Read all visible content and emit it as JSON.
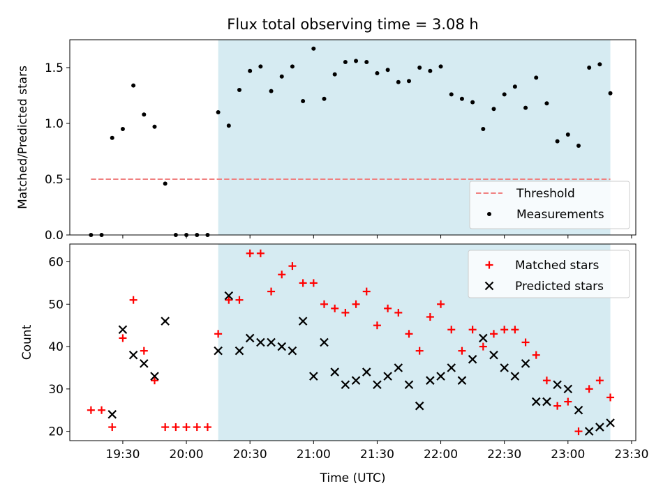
{
  "chart_data": [
    {
      "type": "scatter",
      "title": "Flux total observing time = 3.08 h",
      "xlabel": "",
      "ylabel": "Matched/Predicted stars",
      "x_unit": "time_utc",
      "xlim": [
        "19:05",
        "23:32"
      ],
      "ylim": [
        0,
        1.75
      ],
      "yticks": [
        0.0,
        0.5,
        1.0,
        1.5
      ],
      "ytick_labels": [
        "0.0",
        "0.5",
        "1.0",
        "1.5"
      ],
      "shaded_span": {
        "start": "20:15",
        "end": "23:20",
        "color": "#add8e6"
      },
      "threshold": {
        "name": "Threshold",
        "value": 0.5,
        "x_start": "19:15",
        "x_end": "23:20",
        "color": "#f08080",
        "style": "dashed"
      },
      "legend": {
        "position": "lower-right",
        "entries": [
          "Threshold",
          "Measurements"
        ]
      },
      "series": [
        {
          "name": "Measurements",
          "marker": "dot",
          "color": "#000000",
          "points": [
            [
              "19:15",
              0.0
            ],
            [
              "19:20",
              0.0
            ],
            [
              "19:25",
              0.87
            ],
            [
              "19:30",
              0.95
            ],
            [
              "19:35",
              1.34
            ],
            [
              "19:40",
              1.08
            ],
            [
              "19:45",
              0.97
            ],
            [
              "19:50",
              0.46
            ],
            [
              "19:55",
              0.0
            ],
            [
              "20:00",
              0.0
            ],
            [
              "20:05",
              0.0
            ],
            [
              "20:10",
              0.0
            ],
            [
              "20:15",
              1.1
            ],
            [
              "20:20",
              0.98
            ],
            [
              "20:25",
              1.3
            ],
            [
              "20:30",
              1.47
            ],
            [
              "20:35",
              1.51
            ],
            [
              "20:40",
              1.29
            ],
            [
              "20:45",
              1.42
            ],
            [
              "20:50",
              1.51
            ],
            [
              "20:55",
              1.2
            ],
            [
              "21:00",
              1.67
            ],
            [
              "21:05",
              1.22
            ],
            [
              "21:10",
              1.44
            ],
            [
              "21:15",
              1.55
            ],
            [
              "21:20",
              1.56
            ],
            [
              "21:25",
              1.55
            ],
            [
              "21:30",
              1.45
            ],
            [
              "21:35",
              1.48
            ],
            [
              "21:40",
              1.37
            ],
            [
              "21:45",
              1.38
            ],
            [
              "21:50",
              1.5
            ],
            [
              "21:55",
              1.47
            ],
            [
              "22:00",
              1.51
            ],
            [
              "22:05",
              1.26
            ],
            [
              "22:10",
              1.22
            ],
            [
              "22:15",
              1.19
            ],
            [
              "22:20",
              0.95
            ],
            [
              "22:25",
              1.13
            ],
            [
              "22:30",
              1.26
            ],
            [
              "22:35",
              1.33
            ],
            [
              "22:40",
              1.14
            ],
            [
              "22:45",
              1.41
            ],
            [
              "22:50",
              1.18
            ],
            [
              "22:55",
              0.84
            ],
            [
              "23:00",
              0.9
            ],
            [
              "23:05",
              0.8
            ],
            [
              "23:10",
              1.5
            ],
            [
              "23:15",
              1.53
            ],
            [
              "23:20",
              1.27
            ]
          ]
        }
      ]
    },
    {
      "type": "scatter",
      "title": "",
      "xlabel": "Time (UTC)",
      "ylabel": "Count",
      "x_unit": "time_utc",
      "xlim": [
        "19:05",
        "23:32"
      ],
      "xticks": [
        "19:30",
        "20:00",
        "20:30",
        "21:00",
        "21:30",
        "22:00",
        "22:30",
        "23:00",
        "23:30"
      ],
      "ylim": [
        17.8,
        64.2
      ],
      "yticks": [
        20,
        30,
        40,
        50,
        60
      ],
      "ytick_labels": [
        "20",
        "30",
        "40",
        "50",
        "60"
      ],
      "shaded_span": {
        "start": "20:15",
        "end": "23:20",
        "color": "#add8e6"
      },
      "legend": {
        "position": "upper-right",
        "entries": [
          "Matched stars",
          "Predicted stars"
        ]
      },
      "series": [
        {
          "name": "Matched stars",
          "marker": "plus",
          "color": "#ff0000",
          "points": [
            [
              "19:15",
              25
            ],
            [
              "19:20",
              25
            ],
            [
              "19:25",
              21
            ],
            [
              "19:30",
              42
            ],
            [
              "19:35",
              51
            ],
            [
              "19:40",
              39
            ],
            [
              "19:45",
              32
            ],
            [
              "19:50",
              21
            ],
            [
              "19:55",
              21
            ],
            [
              "20:00",
              21
            ],
            [
              "20:05",
              21
            ],
            [
              "20:10",
              21
            ],
            [
              "20:15",
              43
            ],
            [
              "20:20",
              51
            ],
            [
              "20:25",
              51
            ],
            [
              "20:30",
              62
            ],
            [
              "20:35",
              62
            ],
            [
              "20:40",
              53
            ],
            [
              "20:45",
              57
            ],
            [
              "20:50",
              59
            ],
            [
              "20:55",
              55
            ],
            [
              "21:00",
              55
            ],
            [
              "21:05",
              50
            ],
            [
              "21:10",
              49
            ],
            [
              "21:15",
              48
            ],
            [
              "21:20",
              50
            ],
            [
              "21:25",
              53
            ],
            [
              "21:30",
              45
            ],
            [
              "21:35",
              49
            ],
            [
              "21:40",
              48
            ],
            [
              "21:45",
              43
            ],
            [
              "21:50",
              39
            ],
            [
              "21:55",
              47
            ],
            [
              "22:00",
              50
            ],
            [
              "22:05",
              44
            ],
            [
              "22:10",
              39
            ],
            [
              "22:15",
              44
            ],
            [
              "22:20",
              40
            ],
            [
              "22:25",
              43
            ],
            [
              "22:30",
              44
            ],
            [
              "22:35",
              44
            ],
            [
              "22:40",
              41
            ],
            [
              "22:45",
              38
            ],
            [
              "22:50",
              32
            ],
            [
              "22:55",
              26
            ],
            [
              "23:00",
              27
            ],
            [
              "23:05",
              20
            ],
            [
              "23:10",
              30
            ],
            [
              "23:15",
              32
            ],
            [
              "23:20",
              28
            ]
          ]
        },
        {
          "name": "Predicted stars",
          "marker": "x",
          "color": "#000000",
          "points": [
            [
              "19:25",
              24
            ],
            [
              "19:30",
              44
            ],
            [
              "19:35",
              38
            ],
            [
              "19:40",
              36
            ],
            [
              "19:45",
              33
            ],
            [
              "19:50",
              46
            ],
            [
              "20:15",
              39
            ],
            [
              "20:20",
              52
            ],
            [
              "20:25",
              39
            ],
            [
              "20:30",
              42
            ],
            [
              "20:35",
              41
            ],
            [
              "20:40",
              41
            ],
            [
              "20:45",
              40
            ],
            [
              "20:50",
              39
            ],
            [
              "20:55",
              46
            ],
            [
              "21:00",
              33
            ],
            [
              "21:05",
              41
            ],
            [
              "21:10",
              34
            ],
            [
              "21:15",
              31
            ],
            [
              "21:20",
              32
            ],
            [
              "21:25",
              34
            ],
            [
              "21:30",
              31
            ],
            [
              "21:35",
              33
            ],
            [
              "21:40",
              35
            ],
            [
              "21:45",
              31
            ],
            [
              "21:50",
              26
            ],
            [
              "21:55",
              32
            ],
            [
              "22:00",
              33
            ],
            [
              "22:05",
              35
            ],
            [
              "22:10",
              32
            ],
            [
              "22:15",
              37
            ],
            [
              "22:20",
              42
            ],
            [
              "22:25",
              38
            ],
            [
              "22:30",
              35
            ],
            [
              "22:35",
              33
            ],
            [
              "22:40",
              36
            ],
            [
              "22:45",
              27
            ],
            [
              "22:50",
              27
            ],
            [
              "22:55",
              31
            ],
            [
              "23:00",
              30
            ],
            [
              "23:05",
              25
            ],
            [
              "23:10",
              20
            ],
            [
              "23:15",
              21
            ],
            [
              "23:20",
              22
            ]
          ]
        }
      ]
    }
  ]
}
